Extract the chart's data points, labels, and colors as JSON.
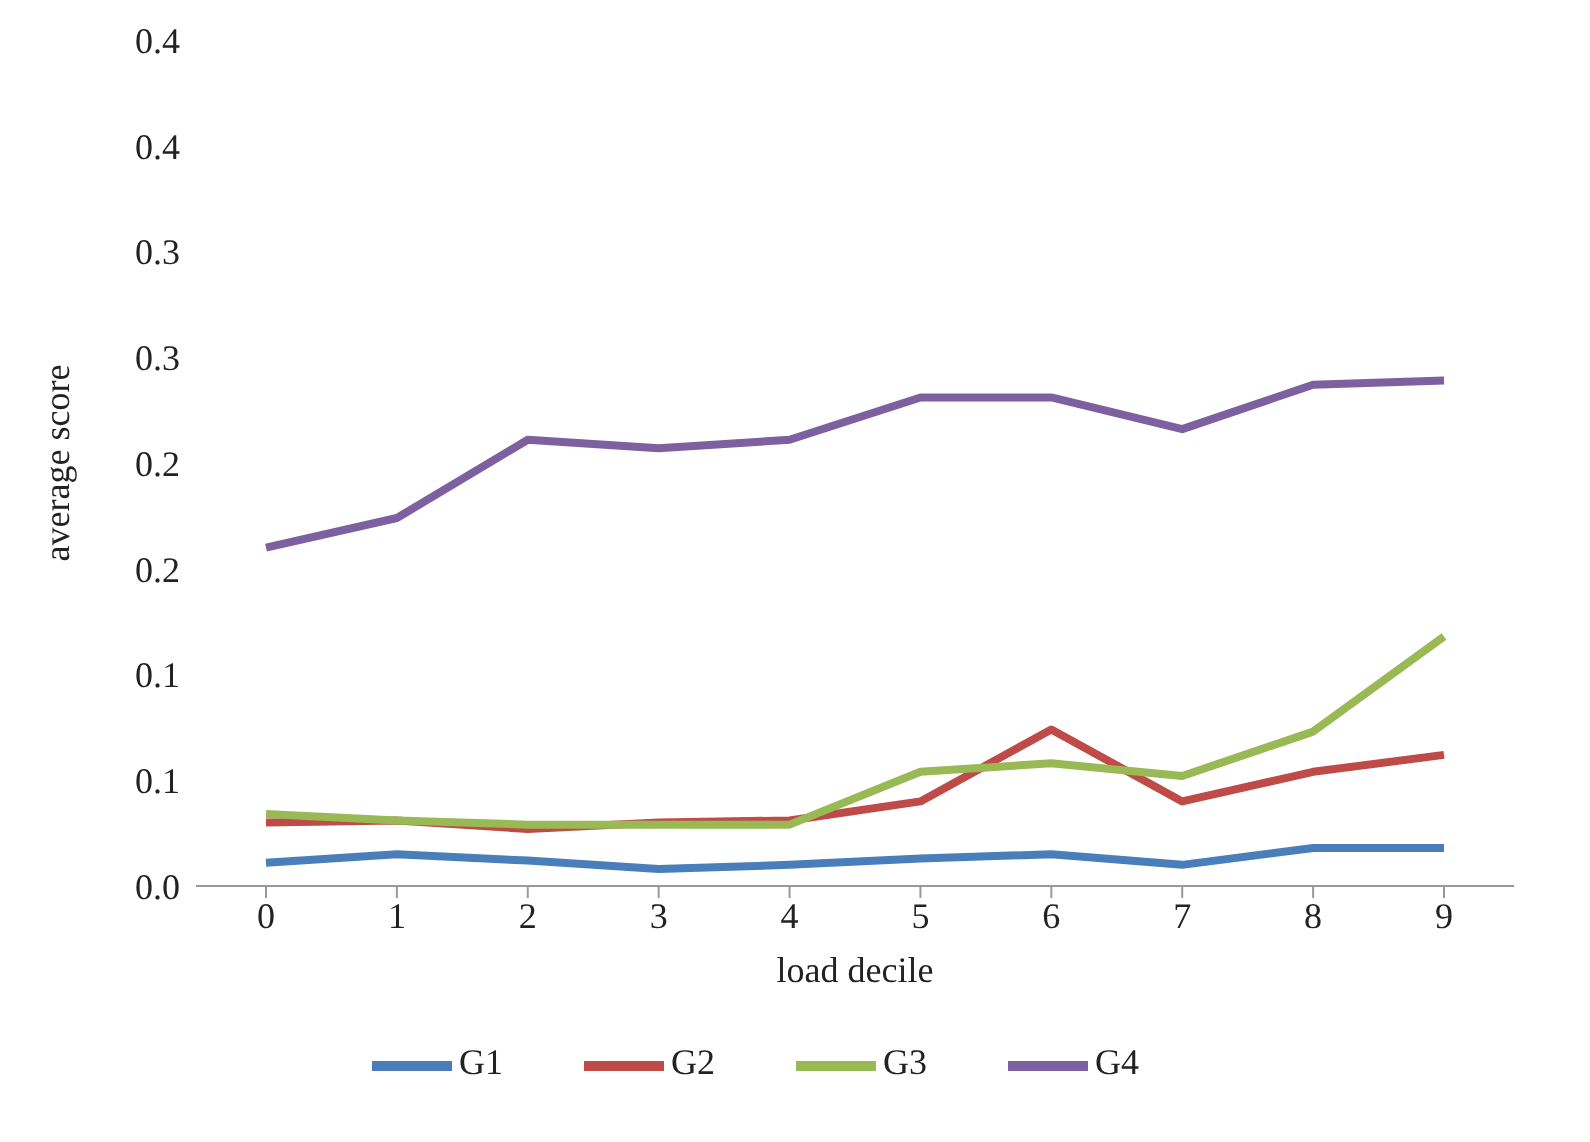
{
  "chart_data": {
    "type": "line",
    "xlabel": "load decile",
    "ylabel": "average score",
    "categories": [
      "0",
      "1",
      "2",
      "3",
      "4",
      "5",
      "6",
      "7",
      "8",
      "9"
    ],
    "series": [
      {
        "name": "G1",
        "color": "#4a7ebb",
        "values": [
          0.011,
          0.015,
          0.012,
          0.008,
          0.01,
          0.013,
          0.015,
          0.01,
          0.018,
          0.018
        ]
      },
      {
        "name": "G2",
        "color": "#be4b48",
        "values": [
          0.03,
          0.031,
          0.027,
          0.03,
          0.031,
          0.04,
          0.074,
          0.04,
          0.054,
          0.062
        ]
      },
      {
        "name": "G3",
        "color": "#98b954",
        "values": [
          0.034,
          0.031,
          0.029,
          0.029,
          0.029,
          0.054,
          0.058,
          0.052,
          0.073,
          0.118
        ]
      },
      {
        "name": "G4",
        "color": "#7d60a0",
        "values": [
          0.16,
          0.174,
          0.211,
          0.207,
          0.211,
          0.231,
          0.231,
          0.216,
          0.237,
          0.239
        ]
      }
    ],
    "ylim": [
      0,
      0.4
    ],
    "yticks": [
      {
        "value": 0,
        "label": "0.0"
      },
      {
        "value": 0.05,
        "label": "0.1"
      },
      {
        "value": 0.1,
        "label": "0.1"
      },
      {
        "value": 0.15,
        "label": "0.2"
      },
      {
        "value": 0.2,
        "label": "0.2"
      },
      {
        "value": 0.25,
        "label": "0.3"
      },
      {
        "value": 0.3,
        "label": "0.3"
      },
      {
        "value": 0.35,
        "label": "0.4"
      },
      {
        "value": 0.4,
        "label": "0.4"
      }
    ],
    "grid": false,
    "legend": "bottom",
    "marker": "none",
    "line_style": "solid"
  }
}
